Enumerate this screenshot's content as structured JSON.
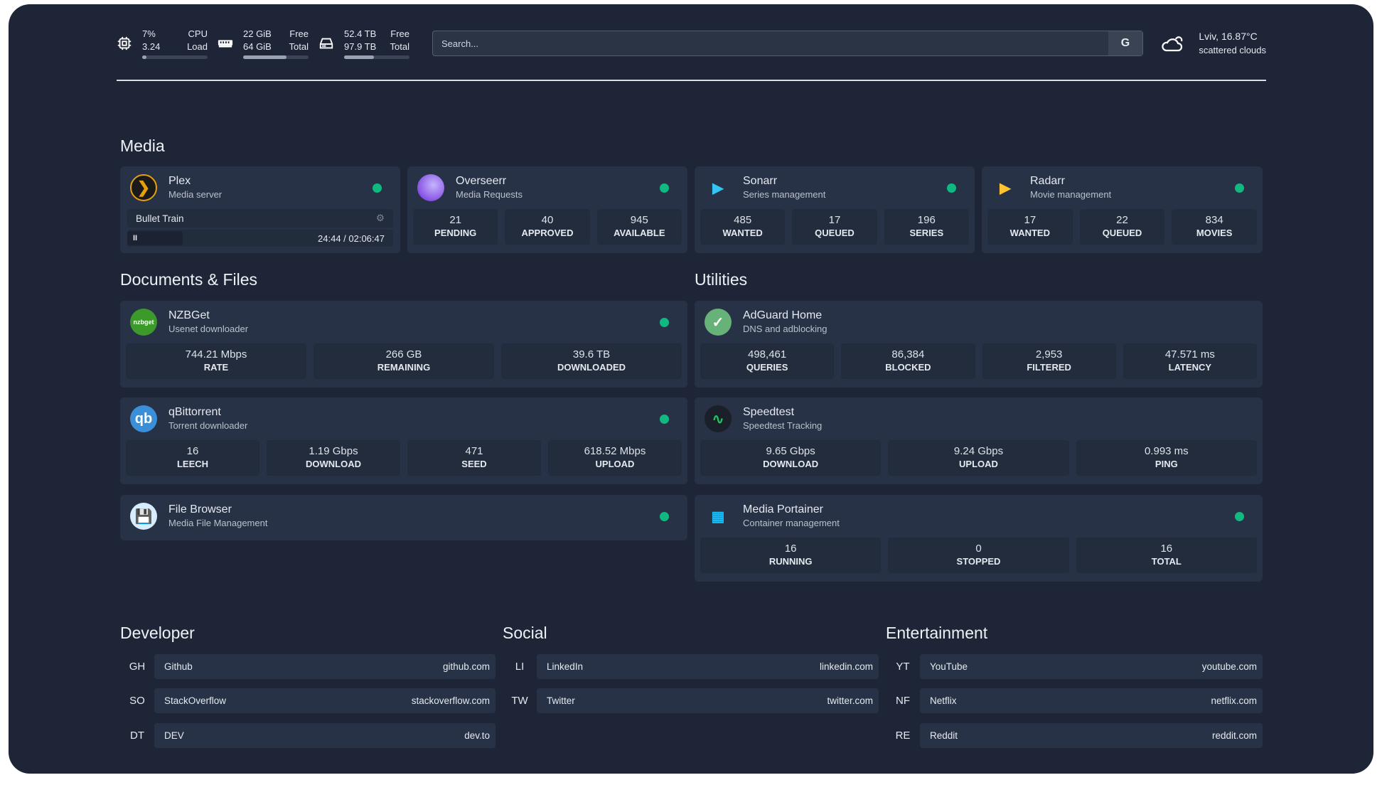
{
  "header": {
    "cpu": {
      "icon": "cpu-icon",
      "value1": "7%",
      "label1": "CPU",
      "value2": "3.24",
      "label2": "Load",
      "percent": 7
    },
    "memory": {
      "icon": "memory-icon",
      "value1": "22 GiB",
      "label1": "Free",
      "value2": "64 GiB",
      "label2": "Total",
      "percent": 66
    },
    "disk": {
      "icon": "disk-icon",
      "value1": "52.4 TB",
      "label1": "Free",
      "value2": "97.9 TB",
      "label2": "Total",
      "percent": 46
    },
    "search": {
      "placeholder": "Search...",
      "provider": "G"
    },
    "weather": {
      "icon": "cloud-icon",
      "location": "Lviv, 16.87°C",
      "desc": "scattered clouds"
    }
  },
  "sections": {
    "media": "Media",
    "docs": "Documents & Files",
    "utilities": "Utilities",
    "developer": "Developer",
    "social": "Social",
    "entertainment": "Entertainment"
  },
  "status_color": "#10b981",
  "plex": {
    "name": "Plex",
    "desc": "Media server",
    "now_playing": "Bullet Train",
    "time": "24:44 / 02:06:47",
    "pause": "II"
  },
  "services": [
    {
      "id": "overseerr",
      "name": "Overseerr",
      "desc": "Media Requests",
      "dot": true,
      "stats": [
        [
          "21",
          "PENDING"
        ],
        [
          "40",
          "APPROVED"
        ],
        [
          "945",
          "AVAILABLE"
        ]
      ]
    },
    {
      "id": "sonarr",
      "name": "Sonarr",
      "desc": "Series management",
      "dot": true,
      "stats": [
        [
          "485",
          "WANTED"
        ],
        [
          "17",
          "QUEUED"
        ],
        [
          "196",
          "SERIES"
        ]
      ]
    },
    {
      "id": "radarr",
      "name": "Radarr",
      "desc": "Movie management",
      "dot": true,
      "stats": [
        [
          "17",
          "WANTED"
        ],
        [
          "22",
          "QUEUED"
        ],
        [
          "834",
          "MOVIES"
        ]
      ]
    },
    {
      "id": "nzbget",
      "name": "NZBGet",
      "desc": "Usenet downloader",
      "dot": true,
      "icon_text": "nzbget",
      "stats": [
        [
          "744.21 Mbps",
          "RATE"
        ],
        [
          "266 GB",
          "REMAINING"
        ],
        [
          "39.6 TB",
          "DOWNLOADED"
        ]
      ]
    },
    {
      "id": "qbittorrent",
      "name": "qBittorrent",
      "desc": "Torrent downloader",
      "dot": true,
      "icon_text": "qb",
      "stats": [
        [
          "16",
          "LEECH"
        ],
        [
          "1.19 Gbps",
          "DOWNLOAD"
        ],
        [
          "471",
          "SEED"
        ],
        [
          "618.52 Mbps",
          "UPLOAD"
        ]
      ]
    },
    {
      "id": "filebrowser",
      "name": "File Browser",
      "desc": "Media File Management",
      "dot": true,
      "stats": []
    },
    {
      "id": "adguard",
      "name": "AdGuard Home",
      "desc": "DNS and adblocking",
      "dot": false,
      "stats": [
        [
          "498,461",
          "QUERIES"
        ],
        [
          "86,384",
          "BLOCKED"
        ],
        [
          "2,953",
          "FILTERED"
        ],
        [
          "47.571 ms",
          "LATENCY"
        ]
      ]
    },
    {
      "id": "speedtest",
      "name": "Speedtest",
      "desc": "Speedtest Tracking",
      "dot": false,
      "stats": [
        [
          "9.65 Gbps",
          "DOWNLOAD"
        ],
        [
          "9.24 Gbps",
          "UPLOAD"
        ],
        [
          "0.993 ms",
          "PING"
        ]
      ]
    },
    {
      "id": "portainer",
      "name": "Media Portainer",
      "desc": "Container management",
      "dot": true,
      "stats": [
        [
          "16",
          "RUNNING"
        ],
        [
          "0",
          "STOPPED"
        ],
        [
          "16",
          "TOTAL"
        ]
      ]
    }
  ],
  "bookmarks": [
    [
      [
        "GH",
        "Github",
        "github.com"
      ],
      [
        "SO",
        "StackOverflow",
        "stackoverflow.com"
      ],
      [
        "DT",
        "DEV",
        "dev.to"
      ]
    ],
    [
      [
        "LI",
        "LinkedIn",
        "linkedin.com"
      ],
      [
        "TW",
        "Twitter",
        "twitter.com"
      ]
    ],
    [
      [
        "YT",
        "YouTube",
        "youtube.com"
      ],
      [
        "NF",
        "Netflix",
        "netflix.com"
      ],
      [
        "RE",
        "Reddit",
        "reddit.com"
      ]
    ]
  ]
}
